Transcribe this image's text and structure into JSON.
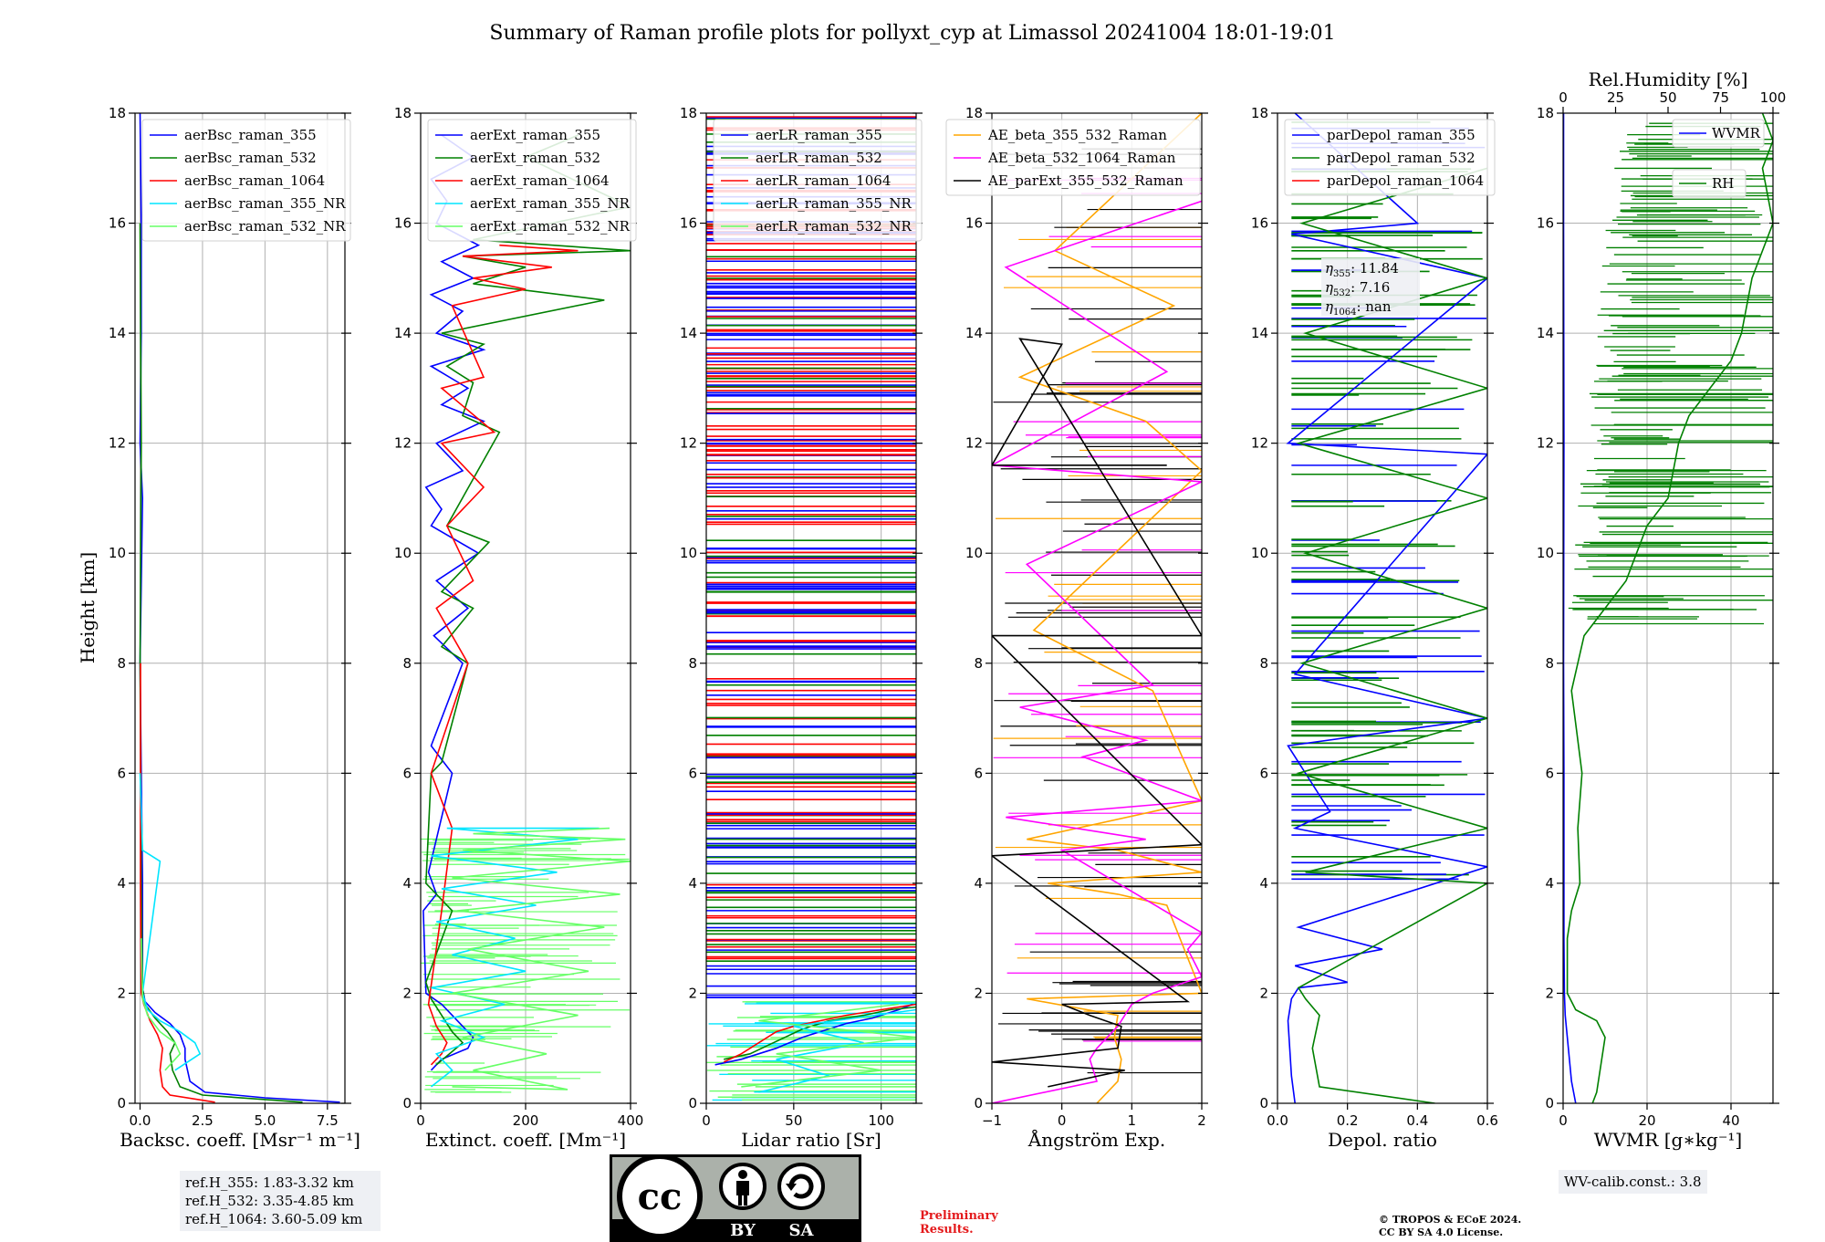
{
  "title": "Summary of Raman profile plots for pollyxt_cyp at Limassol 20241004 18:01-19:01",
  "y_axis": {
    "label": "Height [km]",
    "ticks": [
      "0",
      "2",
      "4",
      "6",
      "8",
      "10",
      "12",
      "14",
      "16",
      "18"
    ]
  },
  "panels": [
    {
      "xlabel": "Backsc. coeff. [Msr$^{-1}$ m$^{-1}$]",
      "xlabel_text": "Backsc. coeff. [Msr⁻¹ m⁻¹]",
      "xticks": [
        "0.0",
        "2.5",
        "5.0",
        "7.5"
      ]
    },
    {
      "xlabel_text": "Extinct. coeff. [Mm⁻¹]",
      "xticks": [
        "0",
        "200",
        "400"
      ]
    },
    {
      "xlabel_text": "Lidar ratio [Sr]",
      "xticks": [
        "0",
        "50",
        "100"
      ]
    },
    {
      "xlabel_text": "Ångström Exp.",
      "xticks": [
        "−1",
        "0",
        "1",
        "2"
      ]
    },
    {
      "xlabel_text": "Depol. ratio",
      "xticks": [
        "0.0",
        "0.2",
        "0.4",
        "0.6"
      ]
    },
    {
      "xlabel_text": "WVMR [g∗kg⁻¹]",
      "xticks": [
        "0",
        "20",
        "40"
      ],
      "top_label": "Rel.Humidity [%]",
      "top_ticks": [
        "0",
        "25",
        "50",
        "75",
        "100"
      ]
    }
  ],
  "legends": [
    [
      "aerBsc_raman_355",
      "aerBsc_raman_532",
      "aerBsc_raman_1064",
      "aerBsc_raman_355_NR",
      "aerBsc_raman_532_NR"
    ],
    [
      "aerExt_raman_355",
      "aerExt_raman_532",
      "aerExt_raman_1064",
      "aerExt_raman_355_NR",
      "aerExt_raman_532_NR"
    ],
    [
      "aerLR_raman_355",
      "aerLR_raman_532",
      "aerLR_raman_1064",
      "aerLR_raman_355_NR",
      "aerLR_raman_532_NR"
    ],
    [
      "AE_beta_355_532_Raman",
      "AE_beta_532_1064_Raman",
      "AE_parExt_355_532_Raman"
    ],
    [
      "parDepol_raman_355",
      "parDepol_raman_532",
      "parDepol_raman_1064"
    ],
    [
      "WVMR",
      "RH"
    ]
  ],
  "eta": {
    "l355": ": 11.84",
    "l532": ": 7.16",
    "l1064": ": nan"
  },
  "ref_heights": [
    "ref.H_355: 1.83-3.32 km",
    "ref.H_532: 3.35-4.85 km",
    "ref.H_1064: 3.60-5.09 km"
  ],
  "wv_calib": "WV-calib.const.: 3.8",
  "preliminary": [
    "Preliminary",
    "Results."
  ],
  "copyright": [
    "© TROPOS & ECoE 2024.",
    "CC BY SA 4.0 License."
  ],
  "cc_logo": {
    "cc": "cc",
    "by": "BY",
    "sa": "SA"
  },
  "colors": {
    "c355": "#0000ff",
    "c532": "#008000",
    "c1064": "#ff0000",
    "c355nr": "#00e5ff",
    "c532nr": "#66ff66",
    "orange": "#ffa500",
    "magenta": "#ff00ff",
    "black": "#000000"
  },
  "chart_data": [
    {
      "type": "line",
      "xlabel": "Backsc. coeff. [Msr⁻¹ m⁻¹]",
      "ylabel": "Height [km]",
      "xlim": [
        -0.2,
        8.2
      ],
      "ylim": [
        0,
        18
      ],
      "series": [
        {
          "name": "aerBsc_raman_355",
          "x": [
            8.0,
            5.0,
            2.6,
            2.0,
            1.8,
            1.8,
            1.6,
            1.2,
            0.6,
            0.2,
            0.1,
            0.1,
            0.05,
            0.0,
            0.1,
            0.0,
            0.05,
            0.05,
            0.0
          ],
          "y": [
            0.02,
            0.1,
            0.2,
            0.4,
            0.8,
            1.0,
            1.25,
            1.45,
            1.65,
            1.85,
            2.1,
            4.0,
            6.0,
            8.0,
            11.0,
            12.0,
            14.0,
            16.0,
            18.0
          ]
        },
        {
          "name": "aerBsc_raman_532",
          "x": [
            6.5,
            2.5,
            1.6,
            1.3,
            1.2,
            1.4,
            1.1,
            0.6,
            0.2,
            0.1,
            0.05,
            0.0,
            0.05,
            0.0
          ],
          "y": [
            0.02,
            0.15,
            0.3,
            0.6,
            0.9,
            1.1,
            1.3,
            1.55,
            1.8,
            2.1,
            4.0,
            8.0,
            12.0,
            16.0
          ]
        },
        {
          "name": "aerBsc_raman_1064",
          "x": [
            3.0,
            1.2,
            0.9,
            0.8,
            0.9,
            0.7,
            0.4,
            0.15,
            0.05,
            0.02,
            0.02
          ],
          "y": [
            0.02,
            0.15,
            0.3,
            0.6,
            1.0,
            1.25,
            1.5,
            1.8,
            2.0,
            4.0,
            8.0
          ]
        },
        {
          "name": "aerBsc_raman_355_NR",
          "x": [
            1.4,
            2.4,
            2.2,
            1.6,
            0.8,
            0.3,
            0.1,
            0.8,
            0.1,
            0.0
          ],
          "y": [
            0.6,
            0.9,
            1.1,
            1.3,
            1.5,
            1.7,
            2.0,
            4.4,
            4.6,
            6.0
          ]
        },
        {
          "name": "aerBsc_raman_532_NR",
          "x": [
            1.0,
            1.6,
            1.4,
            0.8,
            0.3,
            0.1,
            0.05
          ],
          "y": [
            0.6,
            0.9,
            1.1,
            1.3,
            1.6,
            1.9,
            3.0
          ]
        }
      ]
    },
    {
      "type": "line",
      "xlabel": "Extinct. coeff. [Mm⁻¹]",
      "ylabel": "Height [km]",
      "xlim": [
        0,
        400
      ],
      "ylim": [
        0,
        18
      ],
      "series": [
        {
          "name": "aerExt_raman_355",
          "x": [
            20,
            40,
            90,
            100,
            70,
            40,
            10,
            5,
            30,
            15,
            60,
            20,
            80,
            25,
            90,
            30,
            110,
            20,
            40,
            10,
            80,
            30,
            120,
            40,
            90,
            20,
            120,
            30,
            80,
            20,
            100,
            40,
            110,
            30,
            50,
            20,
            100,
            40
          ],
          "y": [
            0.6,
            0.8,
            1.0,
            1.2,
            1.5,
            1.8,
            2.0,
            3.5,
            3.8,
            4.2,
            6.0,
            6.5,
            8.0,
            8.5,
            9.0,
            9.5,
            10.0,
            10.5,
            10.8,
            11.2,
            11.5,
            12.0,
            12.4,
            12.7,
            13.0,
            13.4,
            13.7,
            14.0,
            14.4,
            14.7,
            15.0,
            15.3,
            15.6,
            16.0,
            16.4,
            16.8,
            17.2,
            17.6
          ]
        },
        {
          "name": "aerExt_raman_532",
          "x": [
            30,
            55,
            80,
            60,
            40,
            20,
            10,
            60,
            10,
            20,
            40,
            90,
            40,
            100,
            40,
            130,
            50,
            150,
            80,
            100,
            50,
            120,
            40,
            350,
            100,
            200,
            80,
            400,
            100,
            400,
            200,
            300
          ],
          "y": [
            0.7,
            0.9,
            1.1,
            1.3,
            1.6,
            1.9,
            2.2,
            3.5,
            4.0,
            6.0,
            6.2,
            8.0,
            8.3,
            9.0,
            9.3,
            10.2,
            10.5,
            12.2,
            12.5,
            13.1,
            13.4,
            13.8,
            14.0,
            14.6,
            14.9,
            15.2,
            15.4,
            15.5,
            15.7,
            16.3,
            17.2,
            17.6
          ]
        },
        {
          "name": "aerExt_raman_1064",
          "x": [
            20,
            40,
            50,
            30,
            15,
            40,
            60,
            20,
            90,
            30,
            100,
            50,
            120,
            40,
            140,
            40,
            120,
            60,
            200,
            100,
            250,
            80,
            300,
            150
          ],
          "y": [
            0.7,
            0.9,
            1.1,
            1.4,
            1.8,
            3.5,
            5.0,
            6.0,
            8.0,
            9.0,
            9.5,
            10.5,
            11.2,
            12.0,
            12.2,
            13.0,
            13.2,
            14.5,
            14.8,
            15.0,
            15.2,
            15.4,
            15.5,
            15.6
          ]
        },
        {
          "name": "aerExt_raman_355_NR",
          "x": [
            20,
            60,
            30,
            120,
            40,
            160,
            20,
            200,
            60,
            180,
            30,
            220,
            40,
            260,
            20,
            300,
            50,
            340
          ],
          "y": [
            0.3,
            0.6,
            0.9,
            1.2,
            1.5,
            1.8,
            2.1,
            2.4,
            2.7,
            3.0,
            3.3,
            3.6,
            3.9,
            4.2,
            4.5,
            4.8,
            5.0,
            5.0
          ]
        },
        {
          "name": "aerExt_raman_532_NR",
          "x": [
            60,
            280,
            100,
            240,
            80,
            300,
            60,
            320,
            90,
            350,
            70,
            380,
            60,
            400,
            80,
            390,
            100,
            360
          ],
          "y": [
            0.3,
            0.25,
            0.6,
            0.9,
            1.2,
            1.6,
            2.0,
            2.4,
            2.8,
            3.2,
            3.5,
            3.8,
            4.1,
            4.4,
            4.6,
            4.8,
            4.9,
            5.0
          ]
        }
      ]
    },
    {
      "type": "line",
      "xlabel": "Lidar ratio [Sr]",
      "ylabel": "Height [km]",
      "xlim": [
        0,
        120
      ],
      "ylim": [
        0,
        18
      ],
      "series": [
        {
          "name": "aerLR_raman_355",
          "x": [
            5,
            20,
            40,
            55,
            65,
            80,
            95,
            110,
            118
          ],
          "y": [
            0.7,
            0.8,
            1.0,
            1.2,
            1.3,
            1.45,
            1.55,
            1.7,
            1.8
          ]
        },
        {
          "name": "aerLR_raman_532",
          "x": [
            10,
            25,
            35,
            45,
            55,
            70,
            90,
            105,
            120
          ],
          "y": [
            0.8,
            0.9,
            1.05,
            1.2,
            1.35,
            1.5,
            1.6,
            1.7,
            1.75
          ]
        },
        {
          "name": "aerLR_raman_1064",
          "x": [
            10,
            20,
            30,
            40,
            50,
            65,
            80,
            100,
            120
          ],
          "y": [
            0.75,
            0.9,
            1.1,
            1.3,
            1.4,
            1.5,
            1.6,
            1.7,
            1.8
          ]
        },
        {
          "name": "aerLR_raman_355_NR",
          "x": [
            30,
            70,
            40,
            90,
            50,
            120
          ],
          "y": [
            0.2,
            0.5,
            0.8,
            1.1,
            1.4,
            1.7
          ]
        },
        {
          "name": "aerLR_raman_532_NR",
          "x": [
            20,
            100,
            40,
            120,
            30,
            110
          ],
          "y": [
            0.3,
            0.6,
            0.9,
            1.2,
            1.5,
            1.8
          ]
        }
      ]
    },
    {
      "type": "line",
      "xlabel": "Ångström Exp.",
      "ylabel": "Height [km]",
      "xlim": [
        -1,
        2
      ],
      "ylim": [
        0,
        18
      ],
      "series": [
        {
          "name": "AE_beta_355_532_Raman",
          "x": [
            0.5,
            0.8,
            0.85,
            0.75,
            0.8,
            -0.5,
            2,
            1.5,
            0.8,
            -0.2,
            2,
            0.8,
            -0.5,
            2,
            1.3,
            -0.4,
            2,
            1.2,
            -0.6,
            1.6,
            -0.1,
            2.0
          ],
          "y": [
            0.0,
            0.4,
            0.8,
            1.2,
            1.6,
            1.9,
            2.0,
            3.6,
            3.8,
            4.0,
            4.2,
            4.6,
            4.8,
            5.5,
            7.5,
            8.6,
            11.5,
            12.4,
            13.2,
            14.5,
            15.5,
            18.0
          ]
        },
        {
          "name": "AE_beta_532_1064_Raman",
          "x": [
            -1.0,
            0.5,
            0.4,
            0.5,
            0.8,
            1.0,
            1.3,
            2.0,
            1.8,
            2.0,
            0.0,
            1.2,
            -0.8,
            2.0,
            0.3,
            1.2,
            -0.6,
            1.3,
            -0.5,
            2.0,
            -1.0,
            1.5,
            -0.8,
            2.0
          ],
          "y": [
            0.0,
            0.4,
            0.8,
            1.0,
            1.4,
            1.8,
            2.0,
            2.3,
            2.8,
            3.1,
            4.6,
            4.8,
            5.2,
            5.5,
            6.3,
            6.6,
            7.2,
            7.6,
            9.8,
            11.3,
            11.6,
            13.3,
            15.2,
            16.4
          ]
        },
        {
          "name": "AE_parExt_355_532_Raman",
          "x": [
            -0.2,
            0.9,
            -1.0,
            0.8,
            0.85,
            0.4,
            0.0,
            1.8,
            -1.0,
            2.0,
            -1.0,
            2.0,
            -0.6,
            0.0,
            -1.0,
            1.5
          ],
          "y": [
            0.3,
            0.6,
            0.75,
            1.0,
            1.4,
            1.6,
            1.8,
            1.85,
            4.5,
            4.7,
            8.5,
            8.5,
            13.9,
            13.8,
            11.6,
            11.6
          ]
        }
      ]
    },
    {
      "type": "line",
      "xlabel": "Depol. ratio",
      "ylabel": "Height [km]",
      "xlim": [
        0,
        0.6
      ],
      "ylim": [
        0,
        18
      ],
      "series": [
        {
          "name": "parDepol_raman_355",
          "x": [
            0.05,
            0.04,
            0.035,
            0.03,
            0.04,
            0.06,
            0.2,
            0.05,
            0.3,
            0.06,
            0.6,
            0.05,
            0.15,
            0.03,
            0.6,
            0.05,
            0.6,
            0.03,
            0.6,
            0.04,
            0.4,
            0.05
          ],
          "y": [
            0.0,
            0.5,
            1.0,
            1.5,
            1.9,
            2.1,
            2.2,
            2.5,
            2.8,
            3.2,
            4.3,
            5.0,
            5.3,
            6.5,
            7.0,
            7.8,
            11.8,
            12.0,
            15.0,
            15.8,
            16.0,
            18.0
          ]
        },
        {
          "name": "parDepol_raman_532",
          "x": [
            0.45,
            0.12,
            0.1,
            0.12,
            0.08,
            0.06,
            0.6,
            0.08,
            0.6,
            0.06,
            0.6,
            0.07,
            0.6,
            0.08,
            0.6,
            0.06,
            0.6,
            0.08,
            0.6,
            0.07,
            0.6
          ],
          "y": [
            0.0,
            0.3,
            1.0,
            1.6,
            1.9,
            2.1,
            4.0,
            4.2,
            5.0,
            6.0,
            7.0,
            8.0,
            9.0,
            10.0,
            11.0,
            12.0,
            13.0,
            14.0,
            15.0,
            16.0,
            17.0
          ]
        },
        {
          "name": "parDepol_raman_1064",
          "x": [],
          "y": []
        }
      ]
    },
    {
      "type": "line",
      "xlabel": "WVMR [g∗kg⁻¹]",
      "ylabel": "Height [km]",
      "xlim": [
        0,
        50
      ],
      "ylim": [
        0,
        18
      ],
      "top_axis": {
        "label": "Rel.Humidity [%]",
        "xlim": [
          0,
          100
        ]
      },
      "series": [
        {
          "name": "WVMR",
          "x": [
            3.0,
            2.0,
            1.5,
            1.0,
            0.5,
            0.3,
            0.2,
            0.2,
            0.1,
            0.2,
            0.1,
            0.1
          ],
          "y": [
            0.0,
            0.4,
            0.8,
            1.2,
            1.6,
            2.0,
            3.0,
            6.0,
            8.0,
            12.0,
            16.0,
            18.0
          ]
        },
        {
          "name": "RH",
          "x": [
            14,
            16,
            20,
            16,
            6,
            2,
            2,
            4,
            8,
            7,
            9,
            4,
            10,
            20,
            30,
            35,
            40,
            50,
            55,
            60,
            70,
            80,
            85,
            90,
            100,
            95,
            100,
            95
          ],
          "y": [
            0.0,
            0.2,
            1.2,
            1.5,
            1.7,
            2.0,
            3.0,
            3.5,
            4.0,
            5.0,
            6.0,
            7.5,
            8.5,
            9.0,
            9.5,
            10.0,
            10.5,
            11.0,
            12.0,
            12.5,
            13.0,
            13.5,
            14.0,
            15.0,
            16.0,
            17.0,
            17.5,
            18.0
          ]
        }
      ]
    }
  ]
}
